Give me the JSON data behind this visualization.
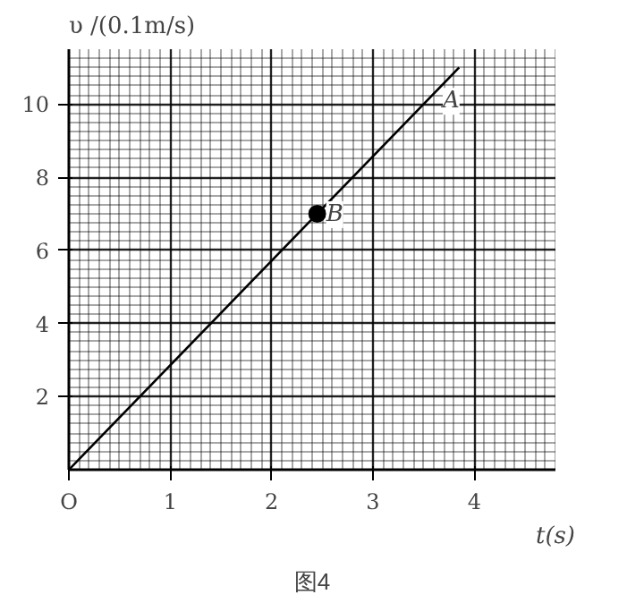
{
  "chart_data": {
    "type": "line",
    "xlabel": "t(s)",
    "ylabel": "υ /(0.1m/s)",
    "x": [
      0,
      3.85
    ],
    "series": [
      {
        "color": "#000000",
        "values": [
          0,
          11
        ]
      },
      {
        "type": "scatter",
        "color": "#000000",
        "x": [
          2.45
        ],
        "values": [
          7
        ],
        "marker": "circle"
      }
    ],
    "xlim": [
      0,
      4.8
    ],
    "ylim": [
      0,
      11.5
    ],
    "xticks": [
      {
        "value": 0,
        "label": "O"
      },
      1,
      2,
      3,
      4
    ],
    "yticks": [
      2,
      4,
      6,
      8,
      10
    ],
    "grid": true,
    "annotations": [
      {
        "text": "A",
        "x": 3.6,
        "y": 10.1
      },
      {
        "text": "B",
        "x": 2.45,
        "y": 7
      },
      "图4"
    ]
  }
}
